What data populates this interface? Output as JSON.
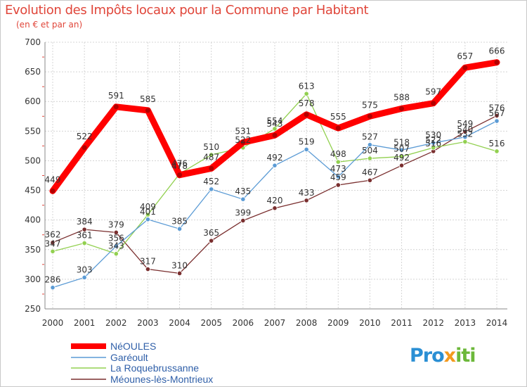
{
  "header": {
    "title": "Evolution des Impôts locaux pour la Commune par Habitant",
    "subtitle": "(en € et par an)"
  },
  "watermark": {
    "text": "Proxiti",
    "colors": [
      "#2a8fd4",
      "#f39a1e",
      "#6cb83a"
    ]
  },
  "chart_data": {
    "type": "line",
    "title": "Evolution des Impôts locaux pour la Commune par Habitant",
    "subtitle": "(en € et par an)",
    "xlabel": "",
    "ylabel": "",
    "x": [
      2000,
      2001,
      2002,
      2003,
      2004,
      2005,
      2006,
      2007,
      2008,
      2009,
      2010,
      2011,
      2012,
      2013,
      2014
    ],
    "ylim": [
      250,
      700
    ],
    "yticks": [
      250,
      300,
      350,
      400,
      450,
      500,
      550,
      600,
      650,
      700
    ],
    "grid": true,
    "legend": "bottom-left",
    "series": [
      {
        "name": "NéOULES",
        "color": "#ff0000",
        "emphasis": true,
        "values": [
          449,
          522,
          591,
          585,
          476,
          487,
          531,
          543,
          578,
          555,
          575,
          588,
          597,
          657,
          666
        ],
        "labels": [
          "449",
          "522",
          "591",
          "585",
          "476",
          "487",
          "531",
          "543",
          "578",
          "555",
          "575",
          "588",
          "597",
          "657",
          "666"
        ]
      },
      {
        "name": "Garéoult",
        "color": "#5b9bd5",
        "values": [
          286,
          303,
          356,
          401,
          385,
          452,
          435,
          492,
          519,
          473,
          527,
          518,
          530,
          540,
          567
        ],
        "labels": [
          "286",
          "303",
          "356",
          "401",
          "385",
          "452",
          "435",
          "492",
          "519",
          "473",
          "527",
          "518",
          "530",
          "540",
          "567"
        ]
      },
      {
        "name": "La Roquebrussanne",
        "color": "#92d050",
        "values": [
          347,
          361,
          343,
          409,
          478,
          510,
          522,
          554,
          613,
          498,
          504,
          507,
          522,
          532,
          516
        ],
        "labels": [
          "347",
          "361",
          "343",
          "409",
          "478",
          "510",
          "522",
          "554",
          "613",
          "498",
          "504",
          "507",
          "522",
          "532",
          "516"
        ]
      },
      {
        "name": "Méounes-lès-Montrieux",
        "color": "#7a2f2f",
        "values": [
          362,
          384,
          379,
          317,
          310,
          365,
          399,
          420,
          433,
          459,
          467,
          492,
          516,
          549,
          576
        ],
        "labels": [
          "362",
          "384",
          "379",
          "317",
          "310",
          "365",
          "399",
          "420",
          "433",
          "459",
          "467",
          "492",
          "516",
          "549",
          "576"
        ]
      }
    ]
  }
}
